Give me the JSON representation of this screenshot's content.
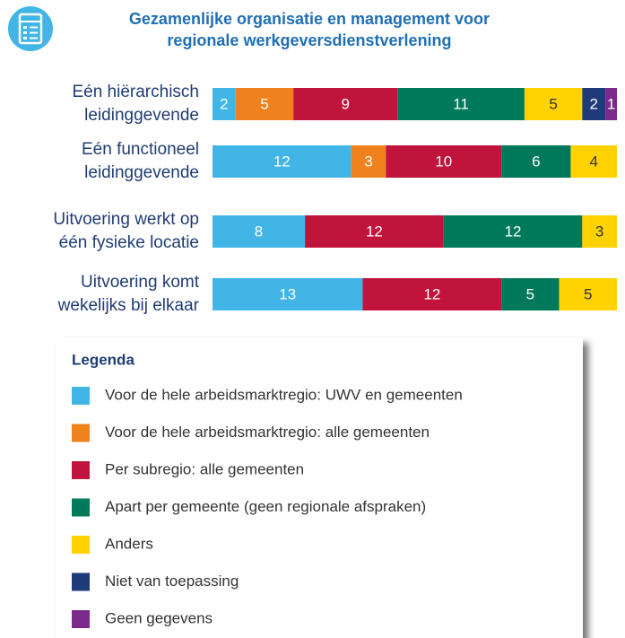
{
  "chart_data": {
    "type": "stacked-bar-horizontal",
    "title": [
      "Gezamenlijke organisatie en management voor",
      "regionale werkgeversdienstverlening"
    ],
    "categories": [
      [
        "Eén hiërarchisch",
        "leidinggevende"
      ],
      [
        "Eén functioneel",
        "leidinggevende"
      ],
      [
        "Uitvoering werkt op",
        "één fysieke locatie"
      ],
      [
        "Uitvoering komt",
        "wekelijks bij elkaar"
      ]
    ],
    "series": [
      {
        "name": "Voor de hele arbeidsmarktregio: UWV en gemeenten",
        "color": "#41b6e6",
        "values": [
          2,
          12,
          8,
          13
        ]
      },
      {
        "name": "Voor de hele arbeidsmarktregio: alle gemeenten",
        "color": "#f0821e",
        "values": [
          5,
          3,
          0,
          0
        ]
      },
      {
        "name": "Per subregio: alle gemeenten",
        "color": "#c0143c",
        "values": [
          9,
          10,
          12,
          12
        ]
      },
      {
        "name": "Apart per gemeente (geen regionale afspraken)",
        "color": "#00795a",
        "values": [
          11,
          6,
          12,
          5
        ]
      },
      {
        "name": "Anders",
        "color": "#ffd200",
        "values": [
          5,
          4,
          3,
          5
        ]
      },
      {
        "name": "Niet van toepassing",
        "color": "#1e3a78",
        "values": [
          2,
          0,
          0,
          0
        ]
      },
      {
        "name": "Geen gegevens",
        "color": "#7b2a8c",
        "values": [
          1,
          0,
          0,
          0
        ]
      }
    ],
    "xlim": [
      0,
      35
    ],
    "legend_title": "Legenda"
  }
}
